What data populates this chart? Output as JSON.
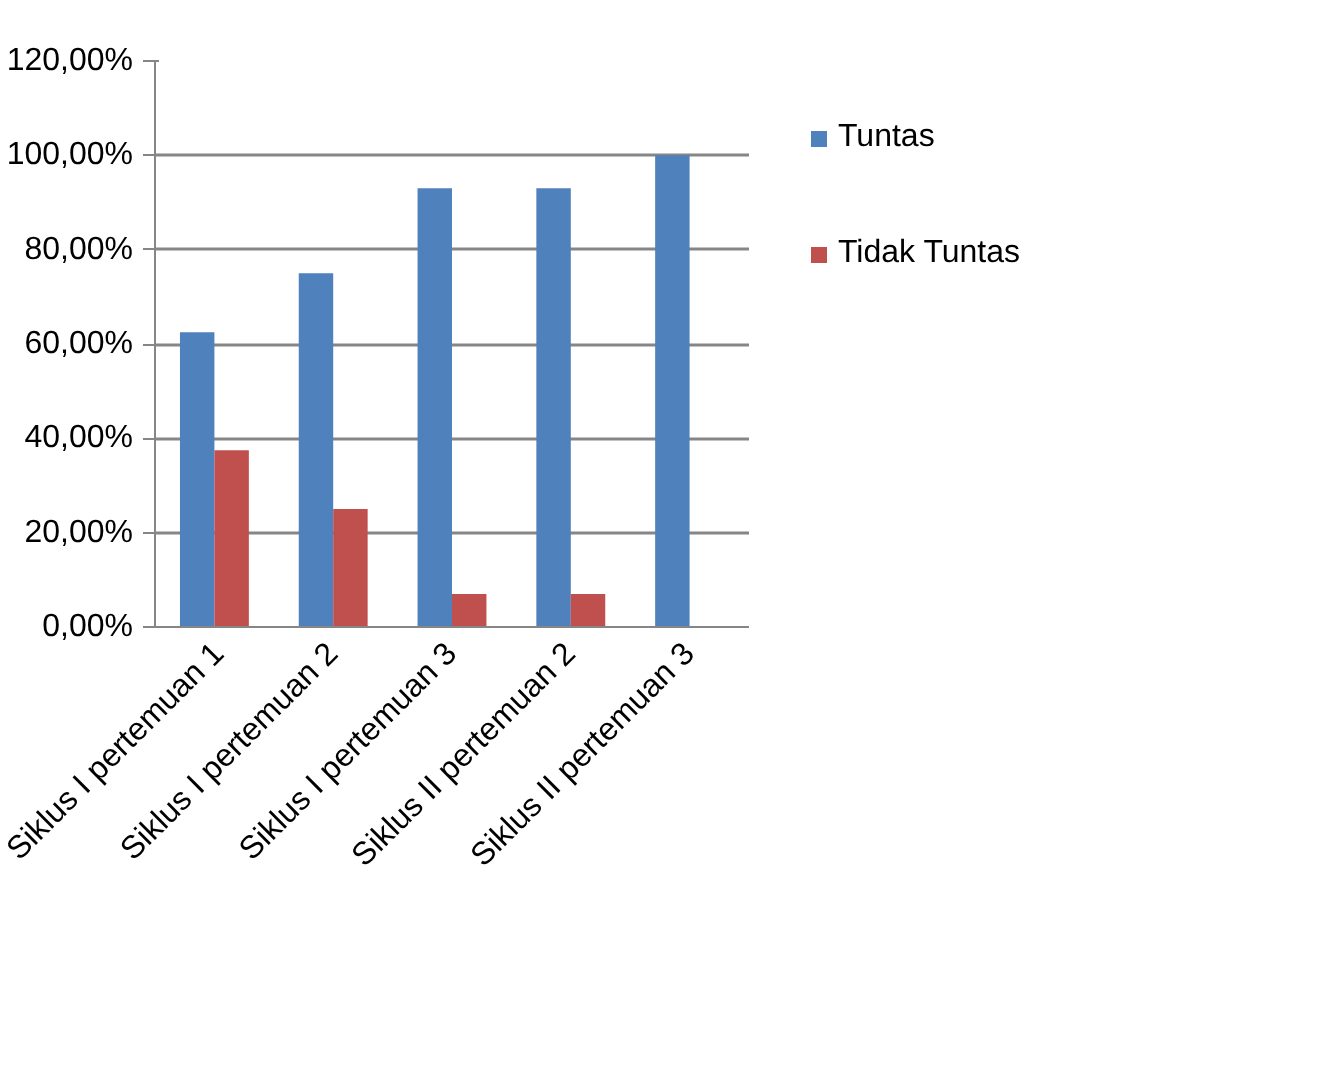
{
  "chart_data": {
    "type": "bar",
    "categories": [
      "Siklus I pertemuan 1",
      "Siklus I pertemuan 2",
      "Siklus I pertemuan 3",
      "Siklus II pertemuan 2",
      "Siklus II pertemuan 3"
    ],
    "series": [
      {
        "name": "Tuntas",
        "color": "#4f81bd",
        "values": [
          62.5,
          75,
          93,
          93,
          100
        ]
      },
      {
        "name": "Tidak Tuntas",
        "color": "#c0504d",
        "values": [
          37.5,
          25,
          7,
          7,
          0
        ]
      }
    ],
    "ylim": [
      0,
      120
    ],
    "yticks": [
      {
        "value": 0,
        "label": "0,00%"
      },
      {
        "value": 20,
        "label": "20,00%"
      },
      {
        "value": 40,
        "label": "40,00%"
      },
      {
        "value": 60,
        "label": "60,00%"
      },
      {
        "value": 80,
        "label": "80,00%"
      },
      {
        "value": 100,
        "label": "100,00%"
      },
      {
        "value": 120,
        "label": "120,00%"
      }
    ],
    "grid": "y",
    "legend": "right"
  }
}
